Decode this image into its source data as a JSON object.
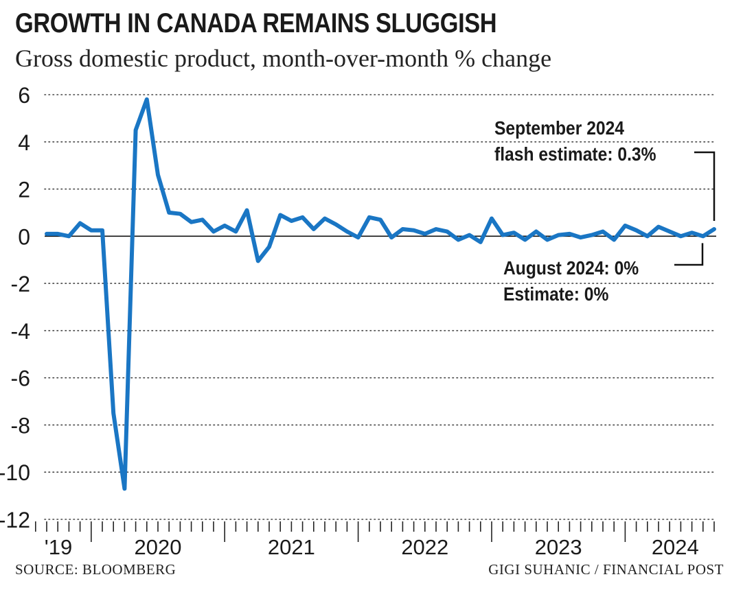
{
  "chart_data": {
    "type": "line",
    "title": "GROWTH IN CANADA REMAINS SLUGGISH",
    "subtitle": "Gross domestic product, month-over-month % change",
    "xlabel": "",
    "ylabel": "",
    "ylim": [
      -12,
      6
    ],
    "yticks": [
      6,
      4,
      2,
      0,
      -2,
      -4,
      -6,
      -8,
      -10,
      -12
    ],
    "x_start": "2019-09",
    "x_end": "2024-09",
    "xtick_labels": [
      "'19",
      "2020",
      "2021",
      "2022",
      "2023",
      "2024"
    ],
    "grid": "horizontal dotted",
    "series": [
      {
        "color": "#1a76c4",
        "x": [
          "2019-09",
          "2019-10",
          "2019-11",
          "2019-12",
          "2020-01",
          "2020-02",
          "2020-03",
          "2020-04",
          "2020-05",
          "2020-06",
          "2020-07",
          "2020-08",
          "2020-09",
          "2020-10",
          "2020-11",
          "2020-12",
          "2021-01",
          "2021-02",
          "2021-03",
          "2021-04",
          "2021-05",
          "2021-06",
          "2021-07",
          "2021-08",
          "2021-09",
          "2021-10",
          "2021-11",
          "2021-12",
          "2022-01",
          "2022-02",
          "2022-03",
          "2022-04",
          "2022-05",
          "2022-06",
          "2022-07",
          "2022-08",
          "2022-09",
          "2022-10",
          "2022-11",
          "2022-12",
          "2023-01",
          "2023-02",
          "2023-03",
          "2023-04",
          "2023-05",
          "2023-06",
          "2023-07",
          "2023-08",
          "2023-09",
          "2023-10",
          "2023-11",
          "2023-12",
          "2024-01",
          "2024-02",
          "2024-03",
          "2024-04",
          "2024-05",
          "2024-06",
          "2024-07",
          "2024-08",
          "2024-09"
        ],
        "values": [
          0.1,
          0.1,
          0.0,
          0.55,
          0.25,
          0.25,
          -7.5,
          -10.7,
          4.5,
          5.8,
          2.6,
          1.0,
          0.95,
          0.6,
          0.7,
          0.2,
          0.45,
          0.2,
          1.1,
          -1.05,
          -0.45,
          0.9,
          0.65,
          0.8,
          0.3,
          0.75,
          0.5,
          0.2,
          -0.05,
          0.8,
          0.7,
          -0.05,
          0.3,
          0.25,
          0.1,
          0.3,
          0.2,
          -0.15,
          0.05,
          -0.25,
          0.75,
          0.05,
          0.15,
          -0.15,
          0.2,
          -0.15,
          0.05,
          0.1,
          -0.05,
          0.05,
          0.2,
          -0.15,
          0.45,
          0.25,
          0.0,
          0.4,
          0.2,
          0.0,
          0.15,
          0.0,
          0.3
        ]
      }
    ],
    "annotations": {
      "september": [
        "September 2024",
        "flash estimate: 0.3%"
      ],
      "august": [
        "August 2024: 0%",
        "Estimate: 0%"
      ]
    }
  },
  "footer": {
    "source": "SOURCE: BLOOMBERG",
    "credit": "GIGI SUHANIC / FINANCIAL POST"
  }
}
